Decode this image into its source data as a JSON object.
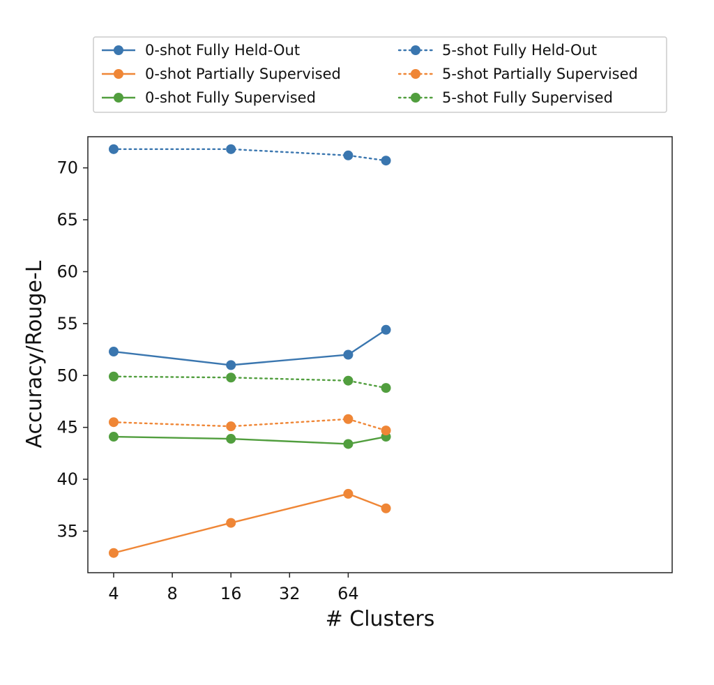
{
  "chart_data": {
    "type": "line",
    "xlabel": "# Clusters",
    "ylabel": "Accuracy/Rouge-L",
    "x_scale": "log2",
    "x": [
      4,
      16,
      64,
      100
    ],
    "xticks": [
      "4",
      "8",
      "16",
      "32",
      "64"
    ],
    "xtick_values": [
      4,
      8,
      16,
      32,
      64
    ],
    "yticks": [
      "35",
      "40",
      "45",
      "50",
      "55",
      "60",
      "65",
      "70"
    ],
    "ytick_values": [
      35,
      40,
      45,
      50,
      55,
      60,
      65,
      70
    ],
    "ylim": [
      31,
      73
    ],
    "grid": false,
    "legend_position": "top",
    "legend_columns": 2,
    "series": [
      {
        "name": "0-shot Fully Held-Out",
        "style": "solid",
        "color": "#3a76af",
        "values": [
          52.3,
          51.0,
          52.0,
          54.4
        ]
      },
      {
        "name": "0-shot Partially Supervised",
        "style": "solid",
        "color": "#ef8636",
        "values": [
          32.9,
          35.8,
          38.6,
          37.2
        ]
      },
      {
        "name": "0-shot Fully Supervised",
        "style": "solid",
        "color": "#519e3e",
        "values": [
          44.1,
          43.9,
          43.4,
          44.1
        ]
      },
      {
        "name": "5-shot Fully Held-Out",
        "style": "dotted",
        "color": "#3a76af",
        "values": [
          71.8,
          71.8,
          71.2,
          70.7
        ]
      },
      {
        "name": "5-shot Partially Supervised",
        "style": "dotted",
        "color": "#ef8636",
        "values": [
          45.5,
          45.1,
          45.8,
          44.7
        ]
      },
      {
        "name": "5-shot Fully Supervised",
        "style": "dotted",
        "color": "#519e3e",
        "values": [
          49.9,
          49.8,
          49.5,
          48.8
        ]
      }
    ]
  }
}
